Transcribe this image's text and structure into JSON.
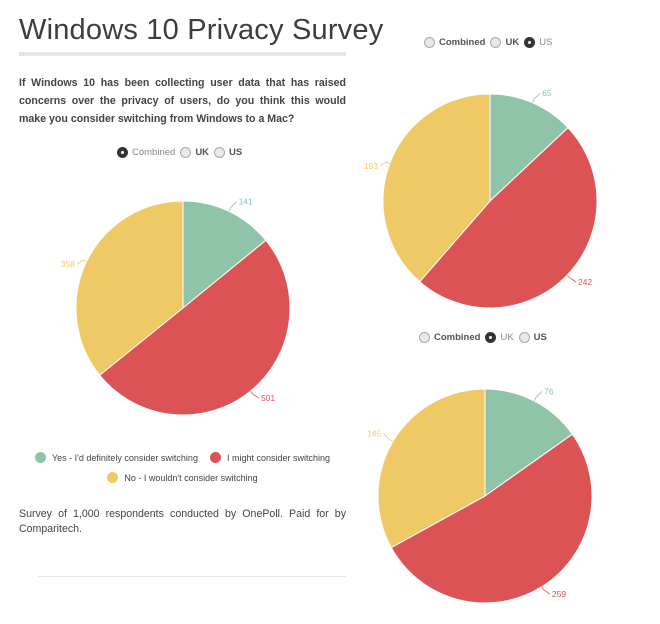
{
  "page": {
    "title": "Windows 10 Privacy Survey",
    "question": "If Windows 10 has been collecting user data that has raised concerns over the privacy of users, do you think this would make you consider switching from Windows to a Mac?",
    "footnote": "Survey of 1,000 respondents conducted by OnePoll. Paid for by Comparitech."
  },
  "colors": {
    "yes": "#8fc4a8",
    "might": "#dc5356",
    "no": "#f0c967"
  },
  "radio_options": [
    "Combined",
    "UK",
    "US"
  ],
  "legend": [
    {
      "label": "Yes - I'd definitely consider switching",
      "color": "#8fc4a8"
    },
    {
      "label": "I might consider switching",
      "color": "#dc5356"
    },
    {
      "label": "No - I wouldn't consider switching",
      "color": "#f0c967"
    }
  ],
  "charts": [
    {
      "id": "combined",
      "selected": "Combined",
      "labels": {
        "yes": "141",
        "might": "501",
        "no": "358"
      }
    },
    {
      "id": "us",
      "selected": "US",
      "labels": {
        "yes": "65",
        "might": "242",
        "no": "193"
      }
    },
    {
      "id": "uk",
      "selected": "UK",
      "labels": {
        "yes": "76",
        "might": "259",
        "no": "165"
      }
    }
  ],
  "chart_data": [
    {
      "type": "pie",
      "title": "Combined",
      "categories": [
        "Yes - I'd definitely consider switching",
        "I might consider switching",
        "No - I wouldn't consider switching"
      ],
      "values": [
        141,
        501,
        358
      ],
      "colors": [
        "#8fc4a8",
        "#dc5356",
        "#f0c967"
      ],
      "legend_position": "bottom"
    },
    {
      "type": "pie",
      "title": "US",
      "categories": [
        "Yes - I'd definitely consider switching",
        "I might consider switching",
        "No - I wouldn't consider switching"
      ],
      "values": [
        65,
        242,
        193
      ],
      "colors": [
        "#8fc4a8",
        "#dc5356",
        "#f0c967"
      ]
    },
    {
      "type": "pie",
      "title": "UK",
      "categories": [
        "Yes - I'd definitely consider switching",
        "I might consider switching",
        "No - I wouldn't consider switching"
      ],
      "values": [
        76,
        259,
        165
      ],
      "colors": [
        "#8fc4a8",
        "#dc5356",
        "#f0c967"
      ]
    }
  ]
}
